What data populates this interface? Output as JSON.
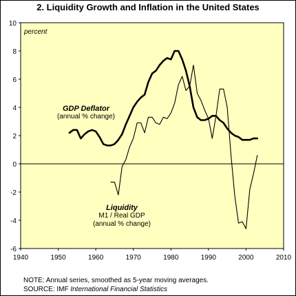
{
  "chart_data": {
    "type": "line",
    "title": "2. Liquidity Growth and Inflation in the United States",
    "ylabel": "percent",
    "xlim": [
      1940,
      2010
    ],
    "ylim": [
      -6,
      10
    ],
    "xticks": [
      1940,
      1950,
      1960,
      1970,
      1980,
      1990,
      2000,
      2010
    ],
    "yticks": [
      -6,
      -4,
      -2,
      0,
      2,
      4,
      6,
      8,
      10
    ],
    "colors": {
      "plot_background": "#FFFFC0",
      "line": "#000000"
    },
    "series": [
      {
        "name": "GDP Deflator",
        "name_sub": "(annual % change)",
        "style": "thick",
        "x": [
          1953,
          1954,
          1955,
          1956,
          1957,
          1958,
          1959,
          1960,
          1961,
          1962,
          1963,
          1964,
          1965,
          1966,
          1967,
          1968,
          1969,
          1970,
          1971,
          1972,
          1973,
          1974,
          1975,
          1976,
          1977,
          1978,
          1979,
          1980,
          1981,
          1982,
          1983,
          1984,
          1985,
          1986,
          1987,
          1988,
          1989,
          1990,
          1991,
          1992,
          1993,
          1994,
          1995,
          1996,
          1997,
          1998,
          1999,
          2000,
          2001,
          2002,
          2003
        ],
        "values": [
          2.2,
          2.4,
          2.4,
          1.8,
          2.1,
          2.3,
          2.4,
          2.3,
          1.9,
          1.4,
          1.3,
          1.3,
          1.4,
          1.7,
          2.1,
          2.8,
          3.4,
          4.0,
          4.4,
          4.7,
          4.9,
          5.8,
          6.4,
          6.6,
          7.0,
          7.3,
          7.5,
          7.4,
          8.0,
          8.0,
          7.4,
          6.6,
          5.5,
          4.0,
          3.3,
          3.1,
          3.1,
          3.2,
          3.4,
          3.4,
          3.1,
          2.9,
          2.5,
          2.2,
          2.0,
          1.9,
          1.7,
          1.7,
          1.7,
          1.8,
          1.8
        ]
      },
      {
        "name": "Liquidity",
        "name_sub": "M1 / Real GDP",
        "name_sub2": "(annual % change)",
        "style": "thin",
        "x": [
          1964,
          1965,
          1966,
          1967,
          1968,
          1969,
          1970,
          1971,
          1972,
          1973,
          1974,
          1975,
          1976,
          1977,
          1978,
          1979,
          1980,
          1981,
          1982,
          1983,
          1984,
          1985,
          1986,
          1987,
          1988,
          1989,
          1990,
          1991,
          1992,
          1993,
          1994,
          1995,
          1996,
          1997,
          1998,
          1999,
          2000,
          2001,
          2002,
          2003
        ],
        "values": [
          -1.3,
          -1.3,
          -2.2,
          -0.2,
          0.3,
          1.2,
          1.8,
          2.9,
          2.9,
          2.2,
          3.3,
          3.3,
          2.9,
          2.8,
          3.3,
          3.2,
          3.6,
          4.3,
          5.6,
          6.2,
          5.2,
          5.5,
          7.0,
          5.0,
          4.5,
          3.8,
          3.2,
          1.8,
          3.4,
          5.3,
          5.3,
          4.0,
          0.6,
          -2.3,
          -4.2,
          -4.1,
          -4.6,
          -1.8,
          -0.7,
          0.6
        ]
      }
    ],
    "notes": {
      "line1": "NOTE: Annual series, smoothed as 5-year moving averages.",
      "line2_prefix": "SOURCE: IMF ",
      "line2_italic": "International Financial Statistics"
    }
  }
}
